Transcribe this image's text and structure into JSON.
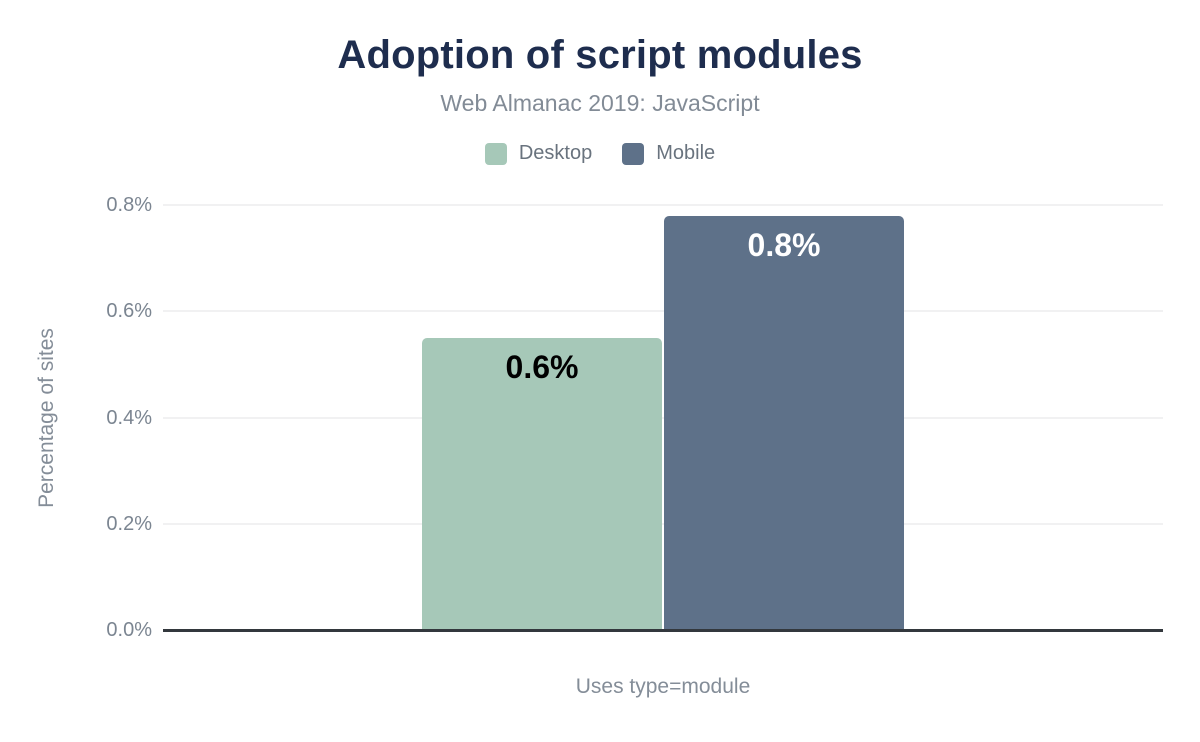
{
  "chart_data": {
    "type": "bar",
    "title": "Adoption of script modules",
    "subtitle": "Web Almanac 2019: JavaScript",
    "categories": [
      "Uses type=module"
    ],
    "series": [
      {
        "name": "Desktop",
        "values": [
          0.55
        ],
        "data_labels": [
          "0.6%"
        ],
        "color": "#a6c8b8",
        "data_label_text_color": "#000000"
      },
      {
        "name": "Mobile",
        "values": [
          0.78
        ],
        "data_labels": [
          "0.8%"
        ],
        "color": "#5e7189",
        "data_label_text_color": "#ffffff"
      }
    ],
    "xlabel": "Uses type=module",
    "ylabel": "Percentage of sites",
    "ylim": [
      0,
      0.8
    ],
    "yticks": [
      {
        "value": 0.0,
        "label": "0.0%"
      },
      {
        "value": 0.2,
        "label": "0.2%"
      },
      {
        "value": 0.4,
        "label": "0.4%"
      },
      {
        "value": 0.6,
        "label": "0.6%"
      },
      {
        "value": 0.8,
        "label": "0.8%"
      }
    ],
    "grid": true,
    "legend_position": "top"
  },
  "colors": {
    "title_text": "#1e2d4e",
    "muted_text": "#7b8591",
    "gridline": "#f1f1f2",
    "axis_line": "#33383d",
    "background": "#ffffff"
  }
}
